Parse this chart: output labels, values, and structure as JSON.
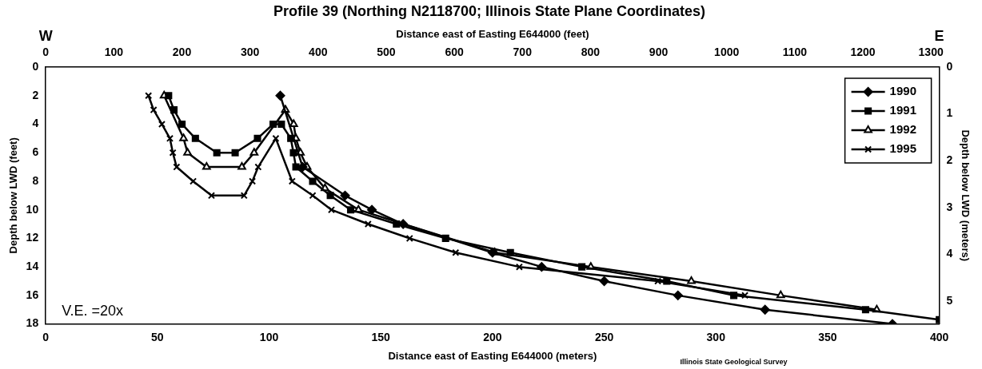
{
  "chart_data": {
    "type": "line",
    "title": "Profile 39 (Northing N2118700; Illinois State Plane Coordinates)",
    "xlabel": "Distance east of Easting E644000 (meters)",
    "x2label": "Distance east of Easting E644000 (feet)",
    "ylabel": "Depth below LWD (feet)",
    "y2label": "Depth below LWD (meters)",
    "xlim": [
      0,
      400
    ],
    "xticks": [
      0,
      50,
      100,
      150,
      200,
      250,
      300,
      350,
      400
    ],
    "x2lim": [
      0,
      1312.3
    ],
    "x2ticks": [
      0,
      100,
      200,
      300,
      400,
      500,
      600,
      700,
      800,
      900,
      1000,
      1100,
      1200,
      1300
    ],
    "ylim": [
      18,
      0
    ],
    "yticks": [
      0,
      2,
      4,
      6,
      8,
      10,
      12,
      14,
      16,
      18
    ],
    "y2lim": [
      5.486,
      0
    ],
    "y2ticks": [
      0,
      1,
      2,
      3,
      4,
      5
    ],
    "grid": false,
    "legend": "top right",
    "line_style": "solid",
    "annotations": [
      "W",
      "E",
      "V.E. =20x",
      "Illinois State Geological Survey"
    ],
    "series": [
      {
        "name": "1990",
        "color": "#000000",
        "marker": "diamond",
        "x": [
          105,
          115,
          134,
          146,
          160,
          200,
          222,
          250,
          283,
          322,
          379
        ],
        "values": [
          2,
          7,
          9,
          10,
          11,
          13,
          14,
          15,
          16,
          17,
          18
        ]
      },
      {
        "name": "1991",
        "color": "#000000",
        "marker": "square",
        "x": [
          55,
          57.4,
          61,
          67,
          76.6,
          84.8,
          94.8,
          101.8,
          105.5,
          109.7,
          110.9,
          112,
          119.5,
          127.4,
          136.5,
          157,
          179,
          208,
          240,
          278,
          308,
          367,
          400
        ],
        "values": [
          2,
          3,
          4,
          5,
          6,
          6,
          5,
          4,
          4,
          5,
          6,
          7,
          8,
          9,
          10,
          11,
          12,
          13,
          14,
          15,
          16,
          17,
          17.7
        ]
      },
      {
        "name": "1992",
        "color": "#000000",
        "marker": "triangle",
        "x": [
          53,
          61.7,
          63.5,
          72,
          87.8,
          93.3,
          107.3,
          111,
          112,
          114,
          117,
          125,
          140,
          201,
          244,
          289,
          329,
          372
        ],
        "values": [
          2,
          5,
          6,
          7,
          7,
          6,
          3,
          4,
          5,
          6,
          7,
          8.5,
          10,
          13,
          14,
          15,
          16,
          17
        ]
      },
      {
        "name": "1995",
        "color": "#000000",
        "marker": "cross",
        "x": [
          46,
          48.3,
          52,
          55.6,
          56.9,
          58.6,
          66,
          74.2,
          88.8,
          92.5,
          95.1,
          103,
          110.3,
          119.5,
          127.9,
          144.3,
          162.9,
          183.5,
          212,
          274,
          313
        ],
        "values": [
          2,
          3,
          4,
          5,
          6,
          7,
          8,
          9,
          9,
          8,
          7,
          5,
          8,
          9,
          10,
          11,
          12,
          13,
          14,
          15,
          16
        ]
      }
    ]
  }
}
